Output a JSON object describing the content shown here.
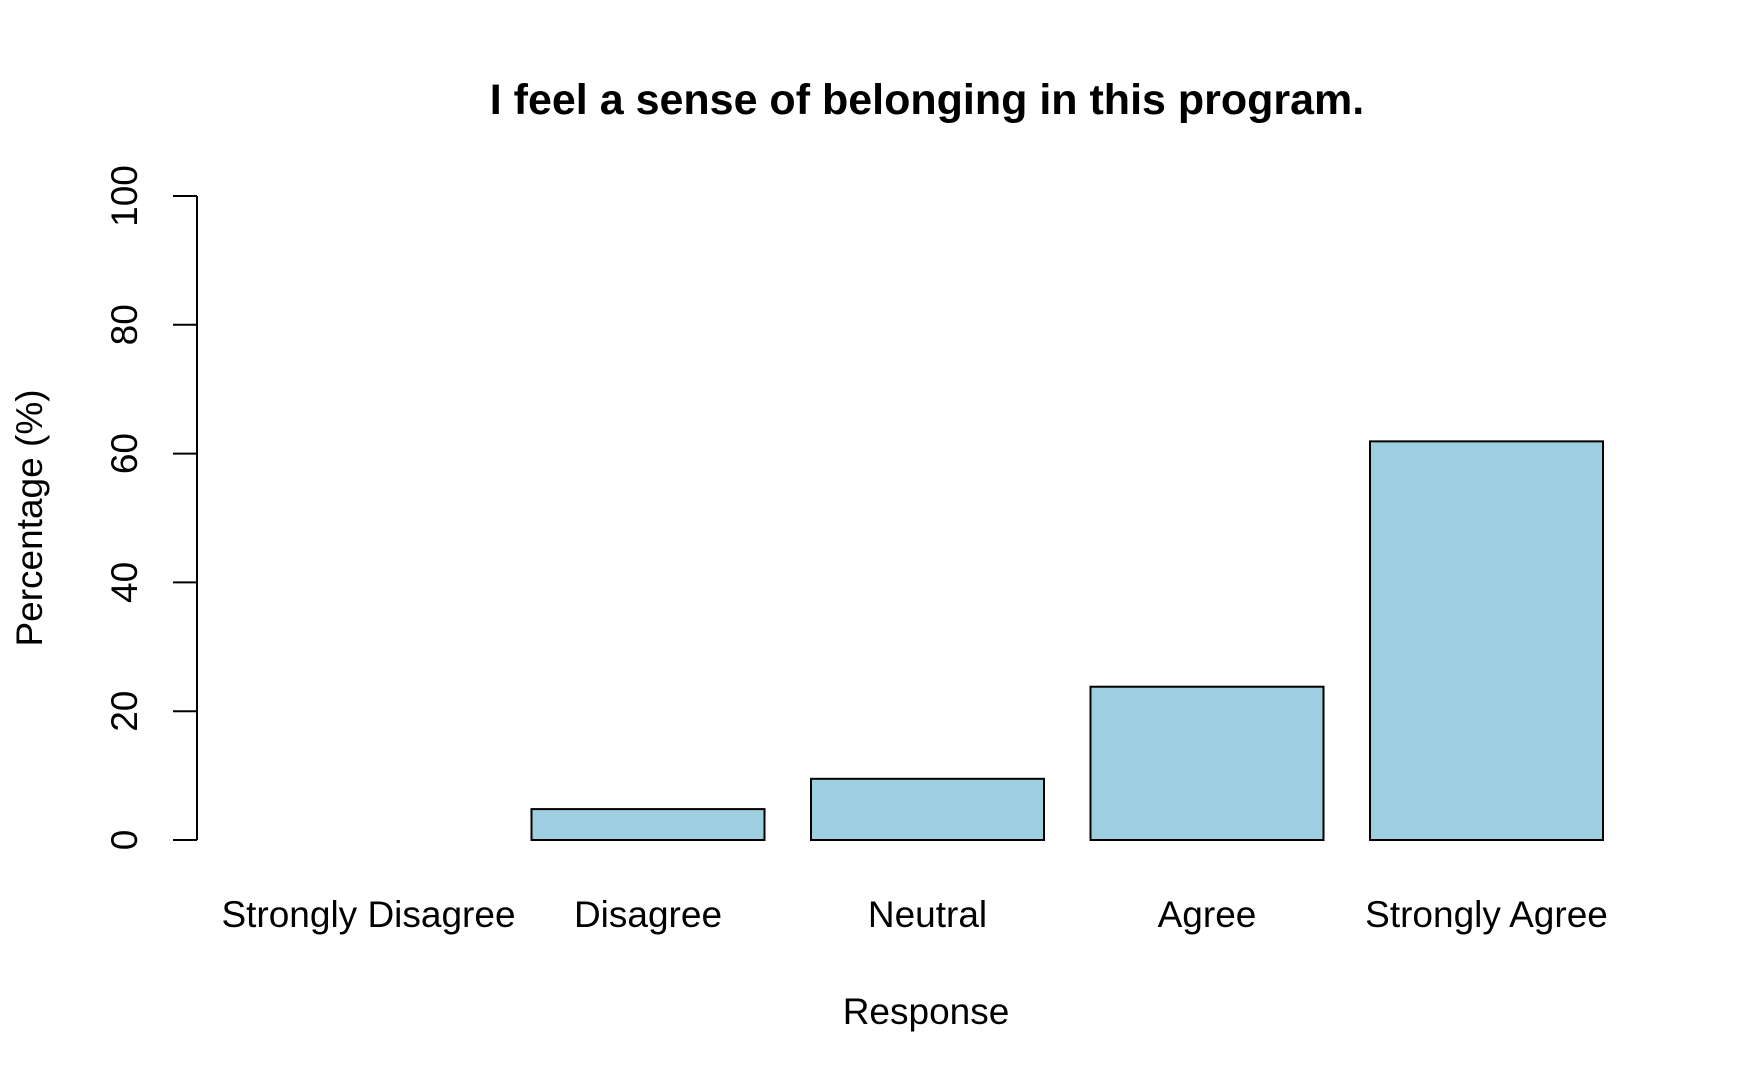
{
  "chart_data": {
    "type": "bar",
    "title": "I feel a sense of belonging in this program.",
    "xlabel": "Response",
    "ylabel": "Percentage (%)",
    "categories": [
      "Strongly Disagree",
      "Disagree",
      "Neutral",
      "Agree",
      "Strongly Agree"
    ],
    "values": [
      0,
      4.8,
      9.5,
      23.8,
      61.9
    ],
    "ylim": [
      0,
      100
    ],
    "yticks": [
      "0",
      "20",
      "40",
      "60",
      "80",
      "100"
    ],
    "bar_color": "#9ecfe0",
    "grid": false,
    "legend": "none"
  }
}
